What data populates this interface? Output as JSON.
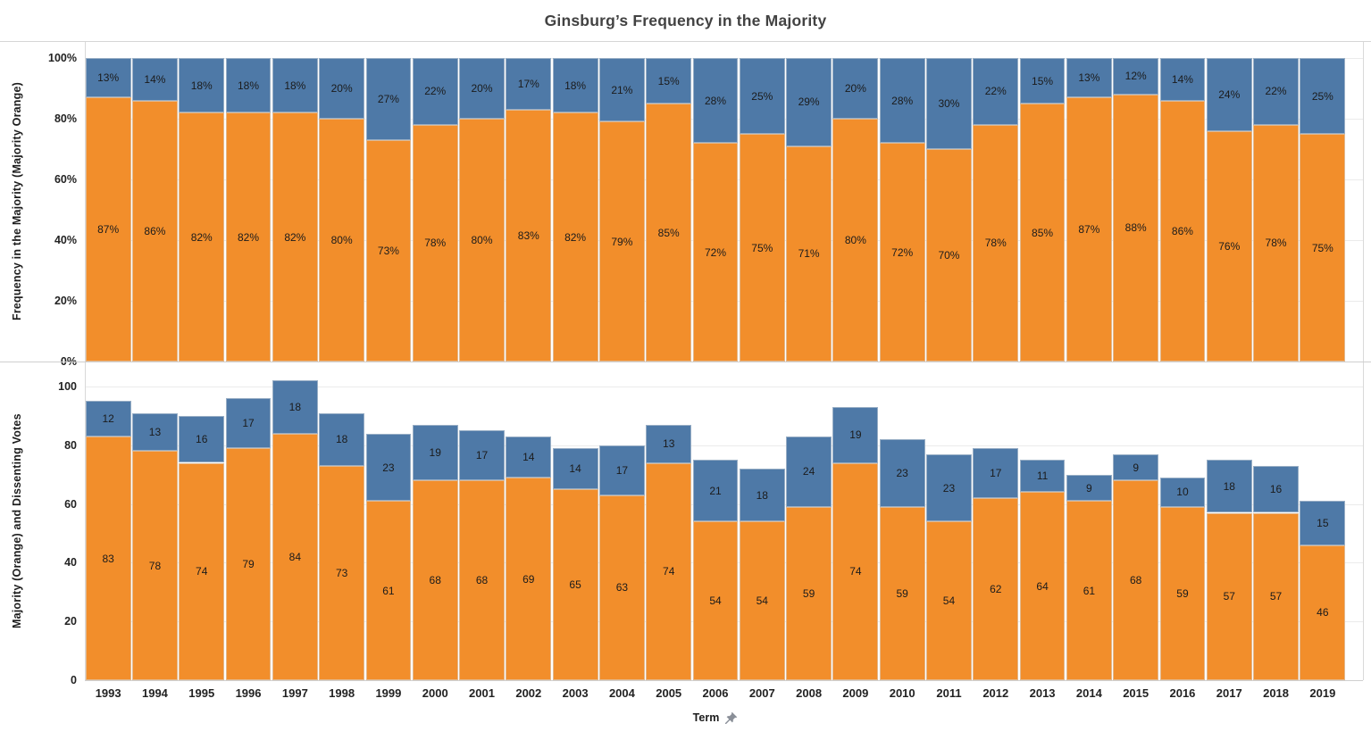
{
  "title": "Ginsburg’s Frequency in the Majority",
  "colors": {
    "majority_orange": "#f28e2b",
    "dissent_blue": "#4e79a7",
    "gridline": "#ebebeb",
    "panel_border": "#cfcfcf"
  },
  "x_axis": {
    "title": "Term",
    "pin_icon": "pin-icon",
    "years": [
      "1993",
      "1994",
      "1995",
      "1996",
      "1997",
      "1998",
      "1999",
      "2000",
      "2001",
      "2002",
      "2003",
      "2004",
      "2005",
      "2006",
      "2007",
      "2008",
      "2009",
      "2010",
      "2011",
      "2012",
      "2013",
      "2014",
      "2015",
      "2016",
      "2017",
      "2018",
      "2019"
    ]
  },
  "panels": [
    {
      "y_title": "Frequency in the Majority (Majority Orange)",
      "ticks": [
        {
          "v": 100,
          "label": "100%"
        },
        {
          "v": 80,
          "label": "80%"
        },
        {
          "v": 60,
          "label": "60%"
        },
        {
          "v": 40,
          "label": "40%"
        },
        {
          "v": 20,
          "label": "20%"
        },
        {
          "v": 0,
          "label": "0%"
        }
      ]
    },
    {
      "y_title": "Majority (Orange) and Dissenting Votes",
      "ticks": [
        {
          "v": 100,
          "label": "100"
        },
        {
          "v": 80,
          "label": "80"
        },
        {
          "v": 60,
          "label": "60"
        },
        {
          "v": 40,
          "label": "40"
        },
        {
          "v": 20,
          "label": "20"
        },
        {
          "v": 0,
          "label": "0"
        }
      ]
    }
  ],
  "chart_data": [
    {
      "type": "bar",
      "stacked": true,
      "title": "Frequency in the Majority (Majority Orange)",
      "xlabel": "Term",
      "ylabel": "Frequency in the Majority (Majority Orange)",
      "unit": "%",
      "ylim": [
        0,
        100
      ],
      "grid": true,
      "legend": "none",
      "categories": [
        "1993",
        "1994",
        "1995",
        "1996",
        "1997",
        "1998",
        "1999",
        "2000",
        "2001",
        "2002",
        "2003",
        "2004",
        "2005",
        "2006",
        "2007",
        "2008",
        "2009",
        "2010",
        "2011",
        "2012",
        "2013",
        "2014",
        "2015",
        "2016",
        "2017",
        "2018",
        "2019"
      ],
      "series": [
        {
          "name": "Majority",
          "color": "#f28e2b",
          "values": [
            87,
            86,
            82,
            82,
            82,
            80,
            73,
            78,
            80,
            83,
            82,
            79,
            85,
            72,
            75,
            71,
            80,
            72,
            70,
            78,
            85,
            87,
            88,
            86,
            76,
            78,
            75
          ]
        },
        {
          "name": "Dissenting",
          "color": "#4e79a7",
          "values": [
            13,
            14,
            18,
            18,
            18,
            20,
            27,
            22,
            20,
            17,
            18,
            21,
            15,
            28,
            25,
            29,
            20,
            28,
            30,
            22,
            15,
            13,
            12,
            14,
            24,
            22,
            25
          ]
        }
      ]
    },
    {
      "type": "bar",
      "stacked": true,
      "title": "Majority (Orange) and Dissenting Votes",
      "xlabel": "Term",
      "ylabel": "Majority (Orange) and Dissenting Votes",
      "unit": "",
      "ylim": [
        0,
        108
      ],
      "grid": true,
      "legend": "none",
      "categories": [
        "1993",
        "1994",
        "1995",
        "1996",
        "1997",
        "1998",
        "1999",
        "2000",
        "2001",
        "2002",
        "2003",
        "2004",
        "2005",
        "2006",
        "2007",
        "2008",
        "2009",
        "2010",
        "2011",
        "2012",
        "2013",
        "2014",
        "2015",
        "2016",
        "2017",
        "2018",
        "2019"
      ],
      "series": [
        {
          "name": "Majority",
          "color": "#f28e2b",
          "values": [
            83,
            78,
            74,
            79,
            84,
            73,
            61,
            68,
            68,
            69,
            65,
            63,
            74,
            54,
            54,
            59,
            74,
            59,
            54,
            62,
            64,
            61,
            68,
            59,
            57,
            57,
            46
          ]
        },
        {
          "name": "Dissenting",
          "color": "#4e79a7",
          "values": [
            12,
            13,
            16,
            17,
            18,
            18,
            23,
            19,
            17,
            14,
            14,
            17,
            13,
            21,
            18,
            24,
            19,
            23,
            23,
            17,
            11,
            9,
            9,
            10,
            18,
            16,
            15
          ]
        }
      ]
    }
  ]
}
